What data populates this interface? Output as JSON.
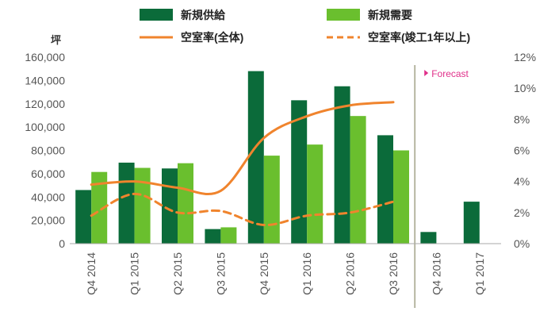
{
  "chart_data": {
    "type": "bar",
    "categories": [
      "Q4 2014",
      "Q1 2015",
      "Q2 2015",
      "Q3 2015",
      "Q4 2015",
      "Q1 2016",
      "Q2 2016",
      "Q3 2016",
      "Q4 2016",
      "Q1 2017"
    ],
    "series": [
      {
        "name": "新規供給",
        "type": "bar",
        "axis": "left",
        "color": "#0b6b3a",
        "values": [
          46000,
          69500,
          64500,
          12500,
          148000,
          123000,
          135000,
          93000,
          10000,
          36000
        ]
      },
      {
        "name": "新規需要",
        "type": "bar",
        "axis": "left",
        "color": "#6abf2e",
        "values": [
          61500,
          65000,
          69000,
          14000,
          75500,
          85000,
          109500,
          80000,
          null,
          null
        ]
      },
      {
        "name": "空室率(全体)",
        "type": "line",
        "axis": "right",
        "color": "#f0842d",
        "dash": "solid",
        "values": [
          3.8,
          4.0,
          3.6,
          3.4,
          6.8,
          8.2,
          8.9,
          9.1,
          null,
          null
        ]
      },
      {
        "name": "空室率(竣工1年以上)",
        "type": "line",
        "axis": "right",
        "color": "#f0842d",
        "dash": "dashed",
        "values": [
          1.8,
          3.2,
          2.0,
          2.1,
          1.2,
          1.8,
          2.0,
          2.7,
          null,
          null
        ]
      }
    ],
    "ylabel": "坪",
    "yticks": [
      "0",
      "20,000",
      "40,000",
      "60,000",
      "80,000",
      "100,000",
      "120,000",
      "140,000",
      "160,000"
    ],
    "ylim": [
      0,
      160000
    ],
    "y2ticks": [
      "0%",
      "2%",
      "4%",
      "6%",
      "8%",
      "10%",
      "12%"
    ],
    "y2lim": [
      0,
      12
    ],
    "forecast_label": "Forecast",
    "forecast_after_index": 7,
    "forecast_color": "#e0308a",
    "legend_position": "top",
    "grid": false
  }
}
